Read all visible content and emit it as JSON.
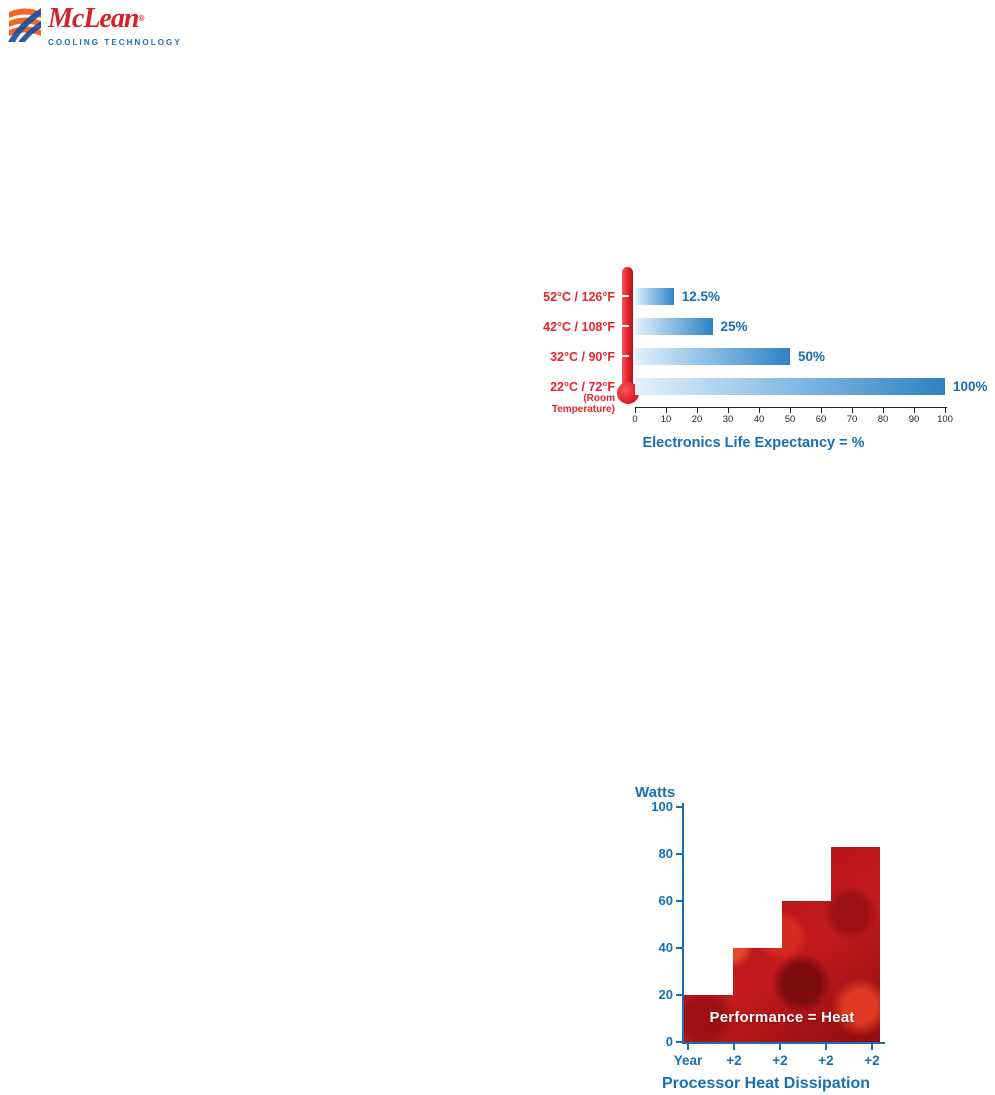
{
  "logo": {
    "brand": "McLean",
    "registered_mark": "®",
    "tagline": "COOLING TECHNOLOGY"
  },
  "chart_data": [
    {
      "type": "bar",
      "orientation": "horizontal",
      "title": "Electronics Life Expectancy = %",
      "categories": [
        "52°C / 126°F",
        "42°C / 108°F",
        "32°C / 90°F",
        "22°C / 72°F"
      ],
      "room_note": "(Room Temperature)",
      "values": [
        12.5,
        25,
        50,
        100
      ],
      "value_labels": [
        "12.5%",
        "25%",
        "50%",
        "100%"
      ],
      "xlim": [
        0,
        100
      ],
      "x_ticks": [
        "0",
        "10",
        "20",
        "30",
        "40",
        "50",
        "60",
        "70",
        "80",
        "90",
        "100"
      ],
      "grid": false,
      "legend": "none"
    },
    {
      "type": "step-area",
      "title": "Processor Heat Dissipation",
      "ylabel": "Watts",
      "annotation": "Performance = Heat",
      "x_ticks": [
        "Year",
        "+2",
        "+2",
        "+2",
        "+2"
      ],
      "y_ticks": [
        "100",
        "80",
        "60",
        "40",
        "20",
        "0"
      ],
      "values": [
        20,
        40,
        60,
        83
      ],
      "ylim": [
        0,
        100
      ],
      "grid": false,
      "legend": "none"
    }
  ],
  "colors": {
    "brand_red": "#d2232a",
    "accent_blue": "#176fb5",
    "label_red": "#e8232b",
    "bar_light": "#e4f1fb",
    "bar_mid": "#8fc0e6",
    "bar_dark": "#2e82c4",
    "thermo_red": "#e31f26",
    "axis_black": "#231f20",
    "fire_dark": "#8f0d11",
    "fire_base": "#c41a1d",
    "fire_bright": "#e8472a",
    "logo_orange": "#f26522",
    "logo_blue": "#1b4f9c"
  }
}
